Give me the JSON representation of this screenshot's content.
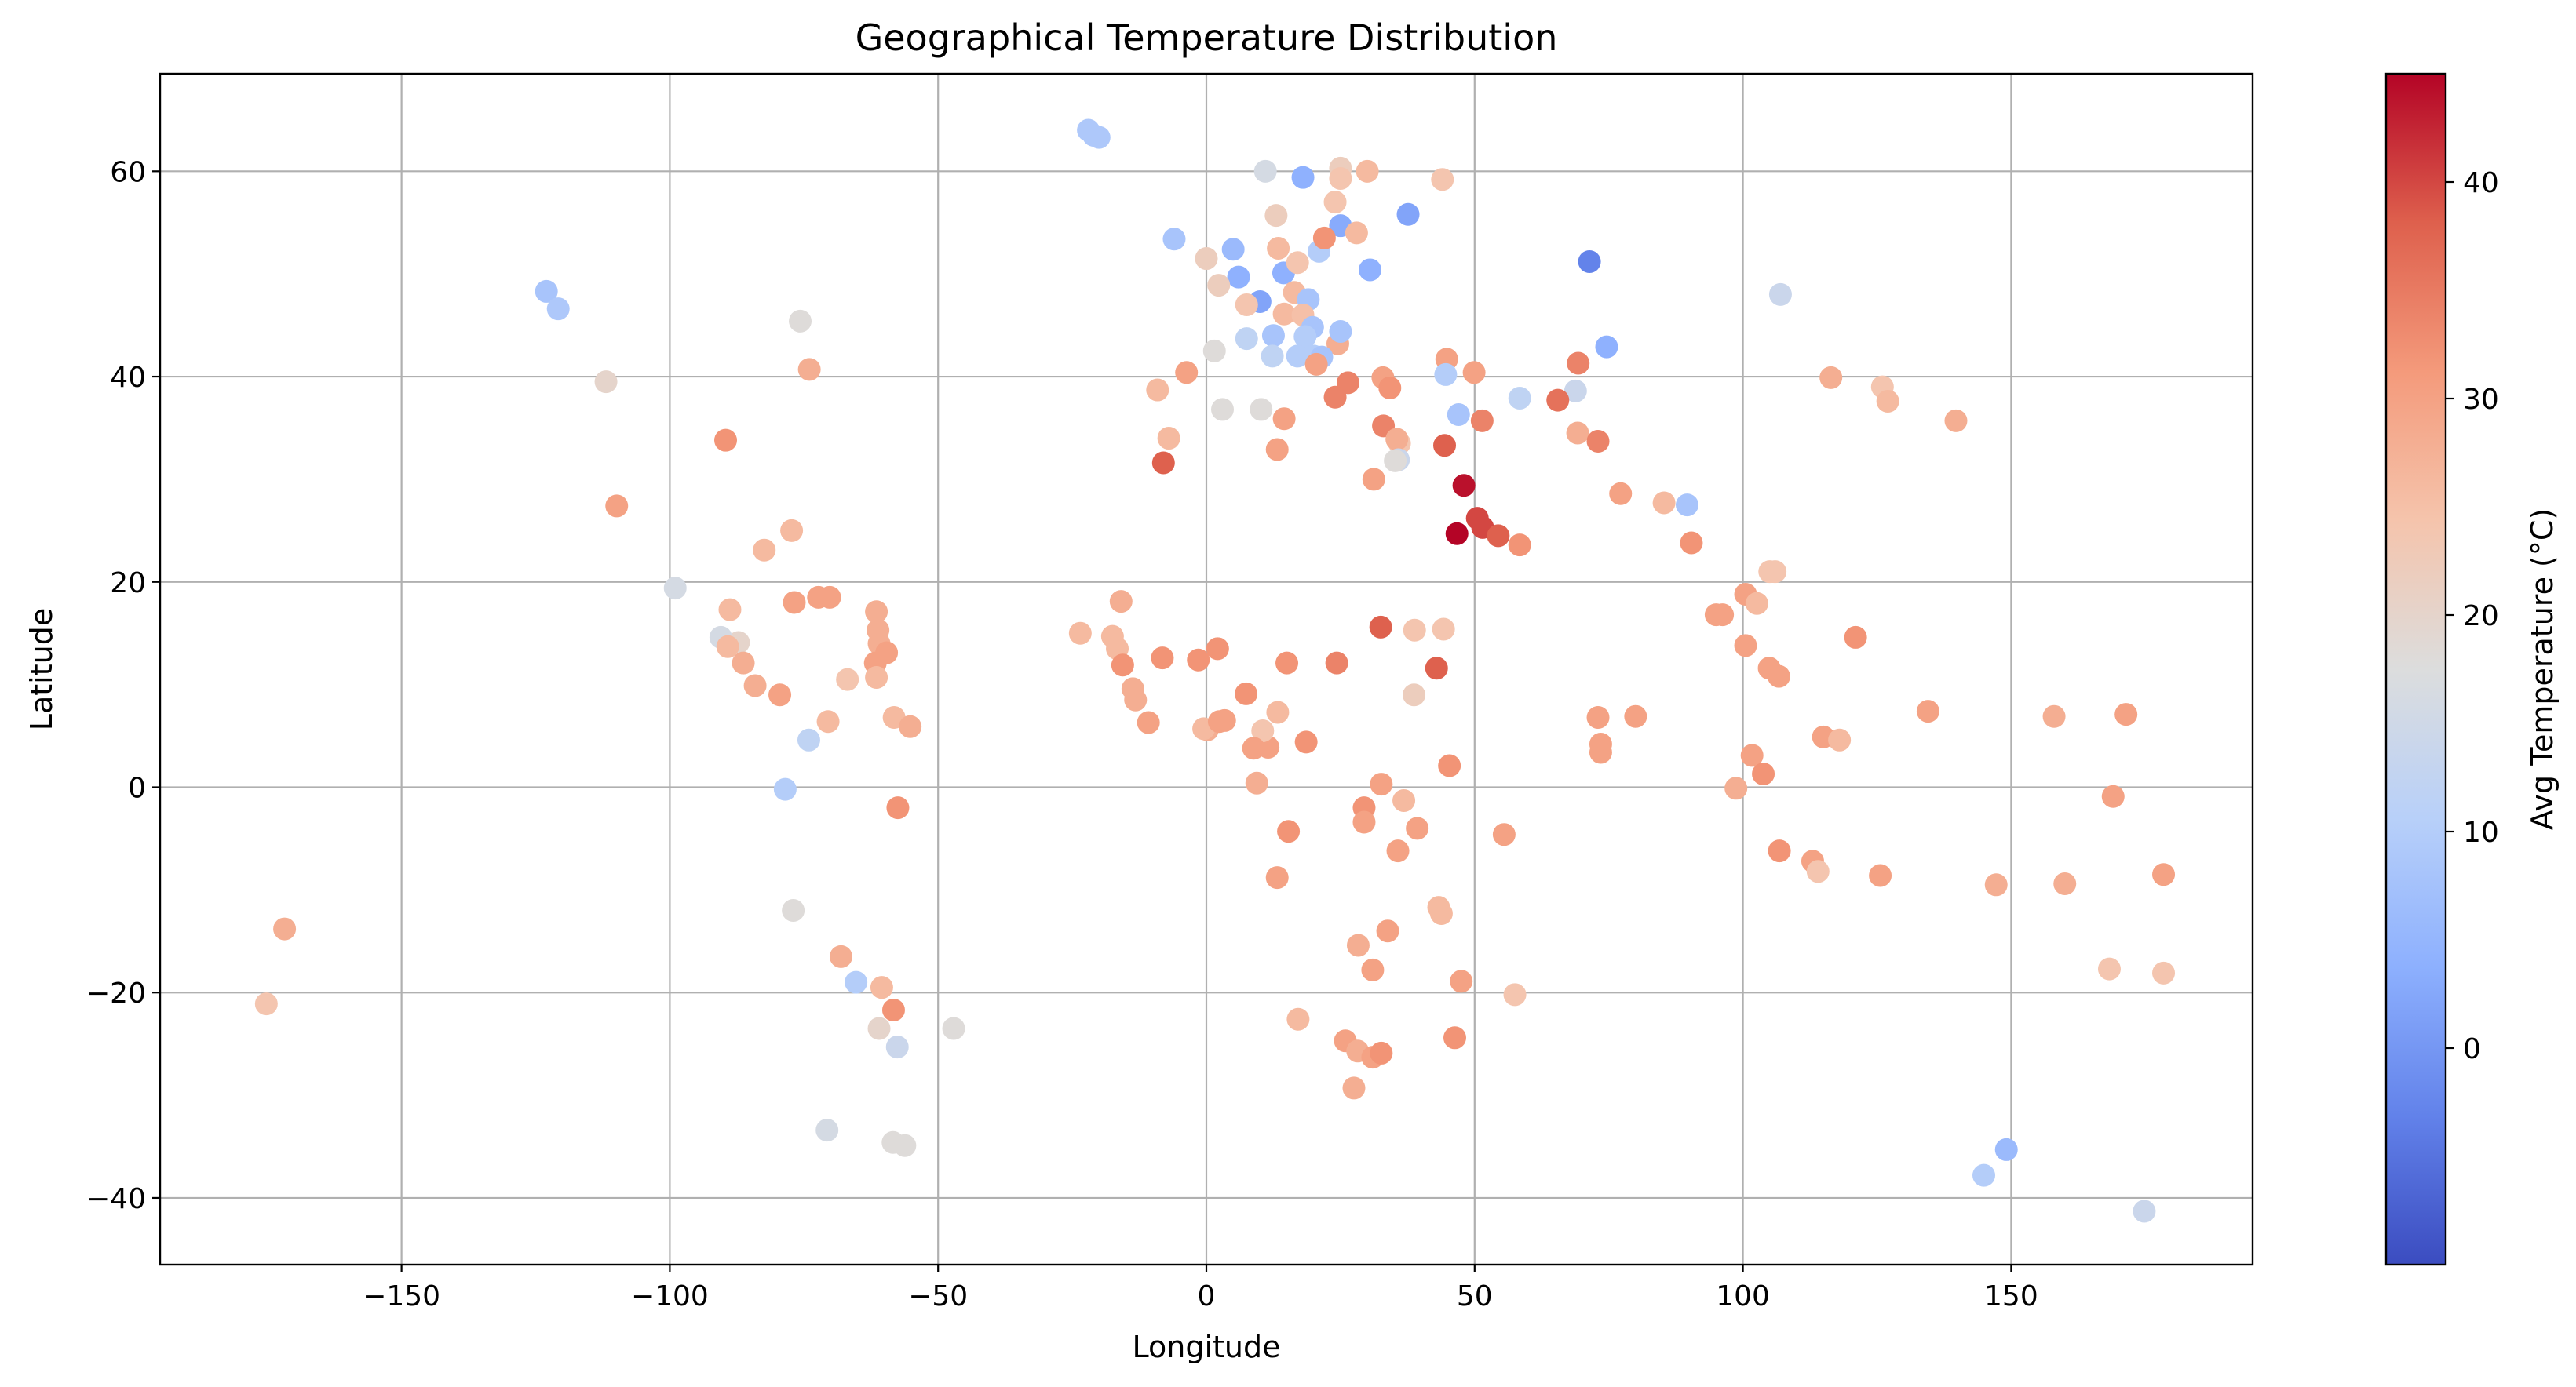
{
  "chart_data": {
    "type": "scatter",
    "title": "Geographical Temperature Distribution",
    "xlabel": "Longitude",
    "ylabel": "Latitude",
    "xlim": [
      -195,
      195
    ],
    "ylim": [
      -46.5,
      69.5
    ],
    "xticks": [
      -150,
      -100,
      -50,
      0,
      50,
      100,
      150
    ],
    "yticks": [
      -40,
      -20,
      0,
      20,
      40,
      60
    ],
    "grid": true,
    "colormap": "coolwarm",
    "colorbar": {
      "label": "Avg Temperature (°C)",
      "range": [
        -10,
        45
      ],
      "ticks": [
        0,
        10,
        20,
        30,
        40
      ],
      "colors": [
        "#3b4cc0",
        "#6282ea",
        "#8db0fe",
        "#b8d0f9",
        "#dcdddd",
        "#f5c4ac",
        "#f49a7b",
        "#de604d",
        "#b40426"
      ]
    },
    "points": [
      [
        -22,
        64,
        9
      ],
      [
        -21,
        63.5,
        9
      ],
      [
        -20,
        63.3,
        9
      ],
      [
        11,
        60,
        16
      ],
      [
        18,
        59.4,
        4
      ],
      [
        25,
        60.3,
        22
      ],
      [
        25,
        59.3,
        24
      ],
      [
        30,
        60,
        26
      ],
      [
        44,
        59.2,
        24
      ],
      [
        24,
        57,
        24
      ],
      [
        13,
        55.7,
        22
      ],
      [
        25,
        54.7,
        3
      ],
      [
        37.6,
        55.8,
        2
      ],
      [
        28,
        54,
        26
      ],
      [
        -6,
        53.4,
        8
      ],
      [
        5,
        52.4,
        6
      ],
      [
        13.4,
        52.5,
        26
      ],
      [
        21,
        52.2,
        10
      ],
      [
        0,
        51.5,
        22
      ],
      [
        22,
        53.5,
        32
      ],
      [
        6,
        49.7,
        4
      ],
      [
        14.4,
        50.1,
        4
      ],
      [
        17,
        51.1,
        24
      ],
      [
        30.5,
        50.4,
        4
      ],
      [
        2.3,
        48.9,
        22
      ],
      [
        71.4,
        51.2,
        -3
      ],
      [
        107,
        48,
        14
      ],
      [
        16.4,
        48.2,
        26
      ],
      [
        10,
        47.3,
        2
      ],
      [
        19,
        47.5,
        8
      ],
      [
        7.5,
        47,
        24
      ],
      [
        14.5,
        46.1,
        26
      ],
      [
        18,
        46,
        25
      ],
      [
        12.5,
        44,
        8
      ],
      [
        7.5,
        43.7,
        12
      ],
      [
        19.8,
        44.8,
        8
      ],
      [
        24.5,
        43.2,
        28
      ],
      [
        18.4,
        43.9,
        10
      ],
      [
        25,
        44.4,
        8
      ],
      [
        12.3,
        42,
        12
      ],
      [
        17,
        42,
        10
      ],
      [
        20,
        42,
        10
      ],
      [
        21.5,
        41.9,
        8
      ],
      [
        20.5,
        41.2,
        30
      ],
      [
        1.5,
        42.5,
        18
      ],
      [
        44.8,
        41.7,
        30
      ],
      [
        44.6,
        40.2,
        10
      ],
      [
        49.9,
        40.4,
        30
      ],
      [
        69.3,
        41.3,
        34
      ],
      [
        74.6,
        42.9,
        4
      ],
      [
        32.9,
        39.9,
        30
      ],
      [
        26.4,
        39.4,
        34
      ],
      [
        34.2,
        38.9,
        32
      ],
      [
        24,
        38,
        34
      ],
      [
        -3.7,
        40.4,
        30
      ],
      [
        -9.1,
        38.7,
        26
      ],
      [
        3,
        36.8,
        18
      ],
      [
        10.2,
        36.8,
        18
      ],
      [
        14.5,
        35.9,
        30
      ],
      [
        33,
        35.2,
        34
      ],
      [
        36,
        33.5,
        24
      ],
      [
        35.5,
        33.9,
        28
      ],
      [
        35.8,
        31.9,
        14
      ],
      [
        35.2,
        31.8,
        18
      ],
      [
        44.4,
        33.3,
        38
      ],
      [
        47,
        36.3,
        8
      ],
      [
        51.4,
        35.7,
        34
      ],
      [
        58.4,
        37.9,
        12
      ],
      [
        68.8,
        38.6,
        14
      ],
      [
        65.5,
        37.7,
        36
      ],
      [
        69.2,
        34.5,
        28
      ],
      [
        73,
        33.7,
        34
      ],
      [
        -7,
        34,
        26
      ],
      [
        -8,
        31.6,
        38
      ],
      [
        13.2,
        32.9,
        30
      ],
      [
        31.2,
        30,
        30
      ],
      [
        48,
        29.4,
        44
      ],
      [
        50.5,
        26.2,
        40
      ],
      [
        51.5,
        25.3,
        40
      ],
      [
        54.4,
        24.5,
        38
      ],
      [
        46.7,
        24.7,
        45
      ],
      [
        58.4,
        23.6,
        32
      ],
      [
        77.2,
        28.6,
        30
      ],
      [
        85.3,
        27.7,
        26
      ],
      [
        89.6,
        27.5,
        8
      ],
      [
        90.4,
        23.8,
        32
      ],
      [
        116.4,
        39.9,
        28
      ],
      [
        126,
        39,
        24
      ],
      [
        127,
        37.6,
        26
      ],
      [
        139.7,
        35.7,
        28
      ],
      [
        105,
        21,
        24
      ],
      [
        106,
        21,
        24
      ],
      [
        100.5,
        18.8,
        30
      ],
      [
        102.6,
        17.9,
        26
      ],
      [
        95,
        16.8,
        30
      ],
      [
        96.2,
        16.8,
        30
      ],
      [
        121,
        14.6,
        32
      ],
      [
        100.5,
        13.8,
        30
      ],
      [
        104.9,
        11.6,
        30
      ],
      [
        106.7,
        10.8,
        30
      ],
      [
        115,
        4.9,
        30
      ],
      [
        118,
        4.6,
        26
      ],
      [
        134.5,
        7.4,
        30
      ],
      [
        101.7,
        3.1,
        30
      ],
      [
        103.8,
        1.3,
        32
      ],
      [
        98.7,
        -0.1,
        28
      ],
      [
        106.8,
        -6.2,
        32
      ],
      [
        113,
        -7.2,
        30
      ],
      [
        114,
        -8.2,
        24
      ],
      [
        125.6,
        -8.6,
        30
      ],
      [
        147.2,
        -9.5,
        28
      ],
      [
        160,
        -9.4,
        28
      ],
      [
        158,
        6.9,
        28
      ],
      [
        171.4,
        7.1,
        30
      ],
      [
        169,
        -0.9,
        30
      ],
      [
        178.4,
        -8.5,
        30
      ],
      [
        168.3,
        -17.7,
        24
      ],
      [
        178.4,
        -18.1,
        24
      ],
      [
        144.9,
        -37.8,
        10
      ],
      [
        149.1,
        -35.3,
        6
      ],
      [
        174.8,
        -41.3,
        14
      ],
      [
        -123,
        48.3,
        8
      ],
      [
        -120.8,
        46.6,
        9
      ],
      [
        -111.9,
        39.5,
        20
      ],
      [
        -109.9,
        27.4,
        30
      ],
      [
        -99,
        19.4,
        16
      ],
      [
        -89.6,
        33.8,
        32
      ],
      [
        -75.7,
        45.4,
        18
      ],
      [
        -74,
        40.7,
        28
      ],
      [
        -82.4,
        23.1,
        26
      ],
      [
        -77.3,
        25,
        26
      ],
      [
        -76.8,
        18,
        30
      ],
      [
        -72.3,
        18.5,
        30
      ],
      [
        -70.2,
        18.5,
        30
      ],
      [
        -88.8,
        17.3,
        26
      ],
      [
        -87.2,
        14.1,
        20
      ],
      [
        -90.5,
        14.6,
        16
      ],
      [
        -89.2,
        13.7,
        26
      ],
      [
        -86.3,
        12.1,
        28
      ],
      [
        -84.1,
        9.9,
        28
      ],
      [
        -79.5,
        9,
        30
      ],
      [
        -74.1,
        4.6,
        12
      ],
      [
        -78.5,
        -0.2,
        10
      ],
      [
        -77,
        -12,
        18
      ],
      [
        -70.7,
        -33.4,
        16
      ],
      [
        -68.1,
        -16.5,
        28
      ],
      [
        -65.3,
        -19,
        10
      ],
      [
        -61.5,
        17.1,
        28
      ],
      [
        -61.2,
        15.3,
        28
      ],
      [
        -61,
        14,
        28
      ],
      [
        -61.7,
        12.1,
        30
      ],
      [
        -59.6,
        13.1,
        30
      ],
      [
        -61.5,
        10.7,
        26
      ],
      [
        -66.9,
        10.5,
        24
      ],
      [
        -70.5,
        6.4,
        26
      ],
      [
        -58.2,
        6.8,
        26
      ],
      [
        -55.2,
        5.9,
        28
      ],
      [
        -57.5,
        -2,
        32
      ],
      [
        -60.5,
        -19.5,
        26
      ],
      [
        -61,
        -23.5,
        20
      ],
      [
        -57.6,
        -25.3,
        14
      ],
      [
        -58.3,
        -21.7,
        32
      ],
      [
        -58.4,
        -34.6,
        18
      ],
      [
        -56.2,
        -34.9,
        18
      ],
      [
        -47.1,
        -23.5,
        18
      ],
      [
        -175.2,
        -21.1,
        24
      ],
      [
        -171.8,
        -13.8,
        28
      ],
      [
        -23.5,
        15,
        26
      ],
      [
        -17.5,
        14.7,
        26
      ],
      [
        -16.6,
        13.5,
        26
      ],
      [
        -15.9,
        18.1,
        28
      ],
      [
        -15.6,
        11.9,
        32
      ],
      [
        -13.7,
        9.6,
        28
      ],
      [
        -13.2,
        8.5,
        28
      ],
      [
        -10.8,
        6.3,
        30
      ],
      [
        -8.2,
        12.6,
        32
      ],
      [
        -1.5,
        12.4,
        32
      ],
      [
        2.1,
        13.5,
        32
      ],
      [
        7.4,
        9.1,
        32
      ],
      [
        0.2,
        5.6,
        28
      ],
      [
        -0.5,
        5.7,
        26
      ],
      [
        2.4,
        6.4,
        30
      ],
      [
        3.4,
        6.5,
        30
      ],
      [
        13.3,
        7.3,
        26
      ],
      [
        15,
        12.1,
        32
      ],
      [
        24.3,
        12.1,
        34
      ],
      [
        32.5,
        15.6,
        38
      ],
      [
        38.8,
        15.3,
        24
      ],
      [
        44.2,
        15.4,
        24
      ],
      [
        42.9,
        11.6,
        38
      ],
      [
        38.7,
        9,
        22
      ],
      [
        45.3,
        2.1,
        32
      ],
      [
        32.6,
        0.3,
        30
      ],
      [
        36.8,
        -1.3,
        26
      ],
      [
        29.4,
        -2,
        32
      ],
      [
        29.4,
        -3.4,
        30
      ],
      [
        39.3,
        -4,
        30
      ],
      [
        35.7,
        -6.2,
        30
      ],
      [
        9.4,
        0.4,
        28
      ],
      [
        11.5,
        3.9,
        30
      ],
      [
        10.5,
        5.5,
        24
      ],
      [
        8.8,
        3.8,
        30
      ],
      [
        18.6,
        4.4,
        32
      ],
      [
        15.3,
        -4.3,
        32
      ],
      [
        13.2,
        -8.8,
        30
      ],
      [
        33.8,
        -14,
        30
      ],
      [
        28.3,
        -15.4,
        28
      ],
      [
        31,
        -17.8,
        30
      ],
      [
        47.5,
        -18.9,
        30
      ],
      [
        55.5,
        -4.6,
        30
      ],
      [
        57.5,
        -20.2,
        24
      ],
      [
        43.3,
        -11.7,
        26
      ],
      [
        43.8,
        -12.3,
        26
      ],
      [
        46.3,
        -24.4,
        32
      ],
      [
        17.1,
        -22.6,
        26
      ],
      [
        25.9,
        -24.7,
        30
      ],
      [
        28.2,
        -25.7,
        28
      ],
      [
        31,
        -26.3,
        30
      ],
      [
        32.6,
        -25.9,
        32
      ],
      [
        27.5,
        -29.3,
        28
      ],
      [
        80,
        6.9,
        30
      ],
      [
        73.5,
        4.2,
        30
      ],
      [
        73.5,
        3.4,
        30
      ],
      [
        73,
        6.8,
        30
      ]
    ]
  }
}
